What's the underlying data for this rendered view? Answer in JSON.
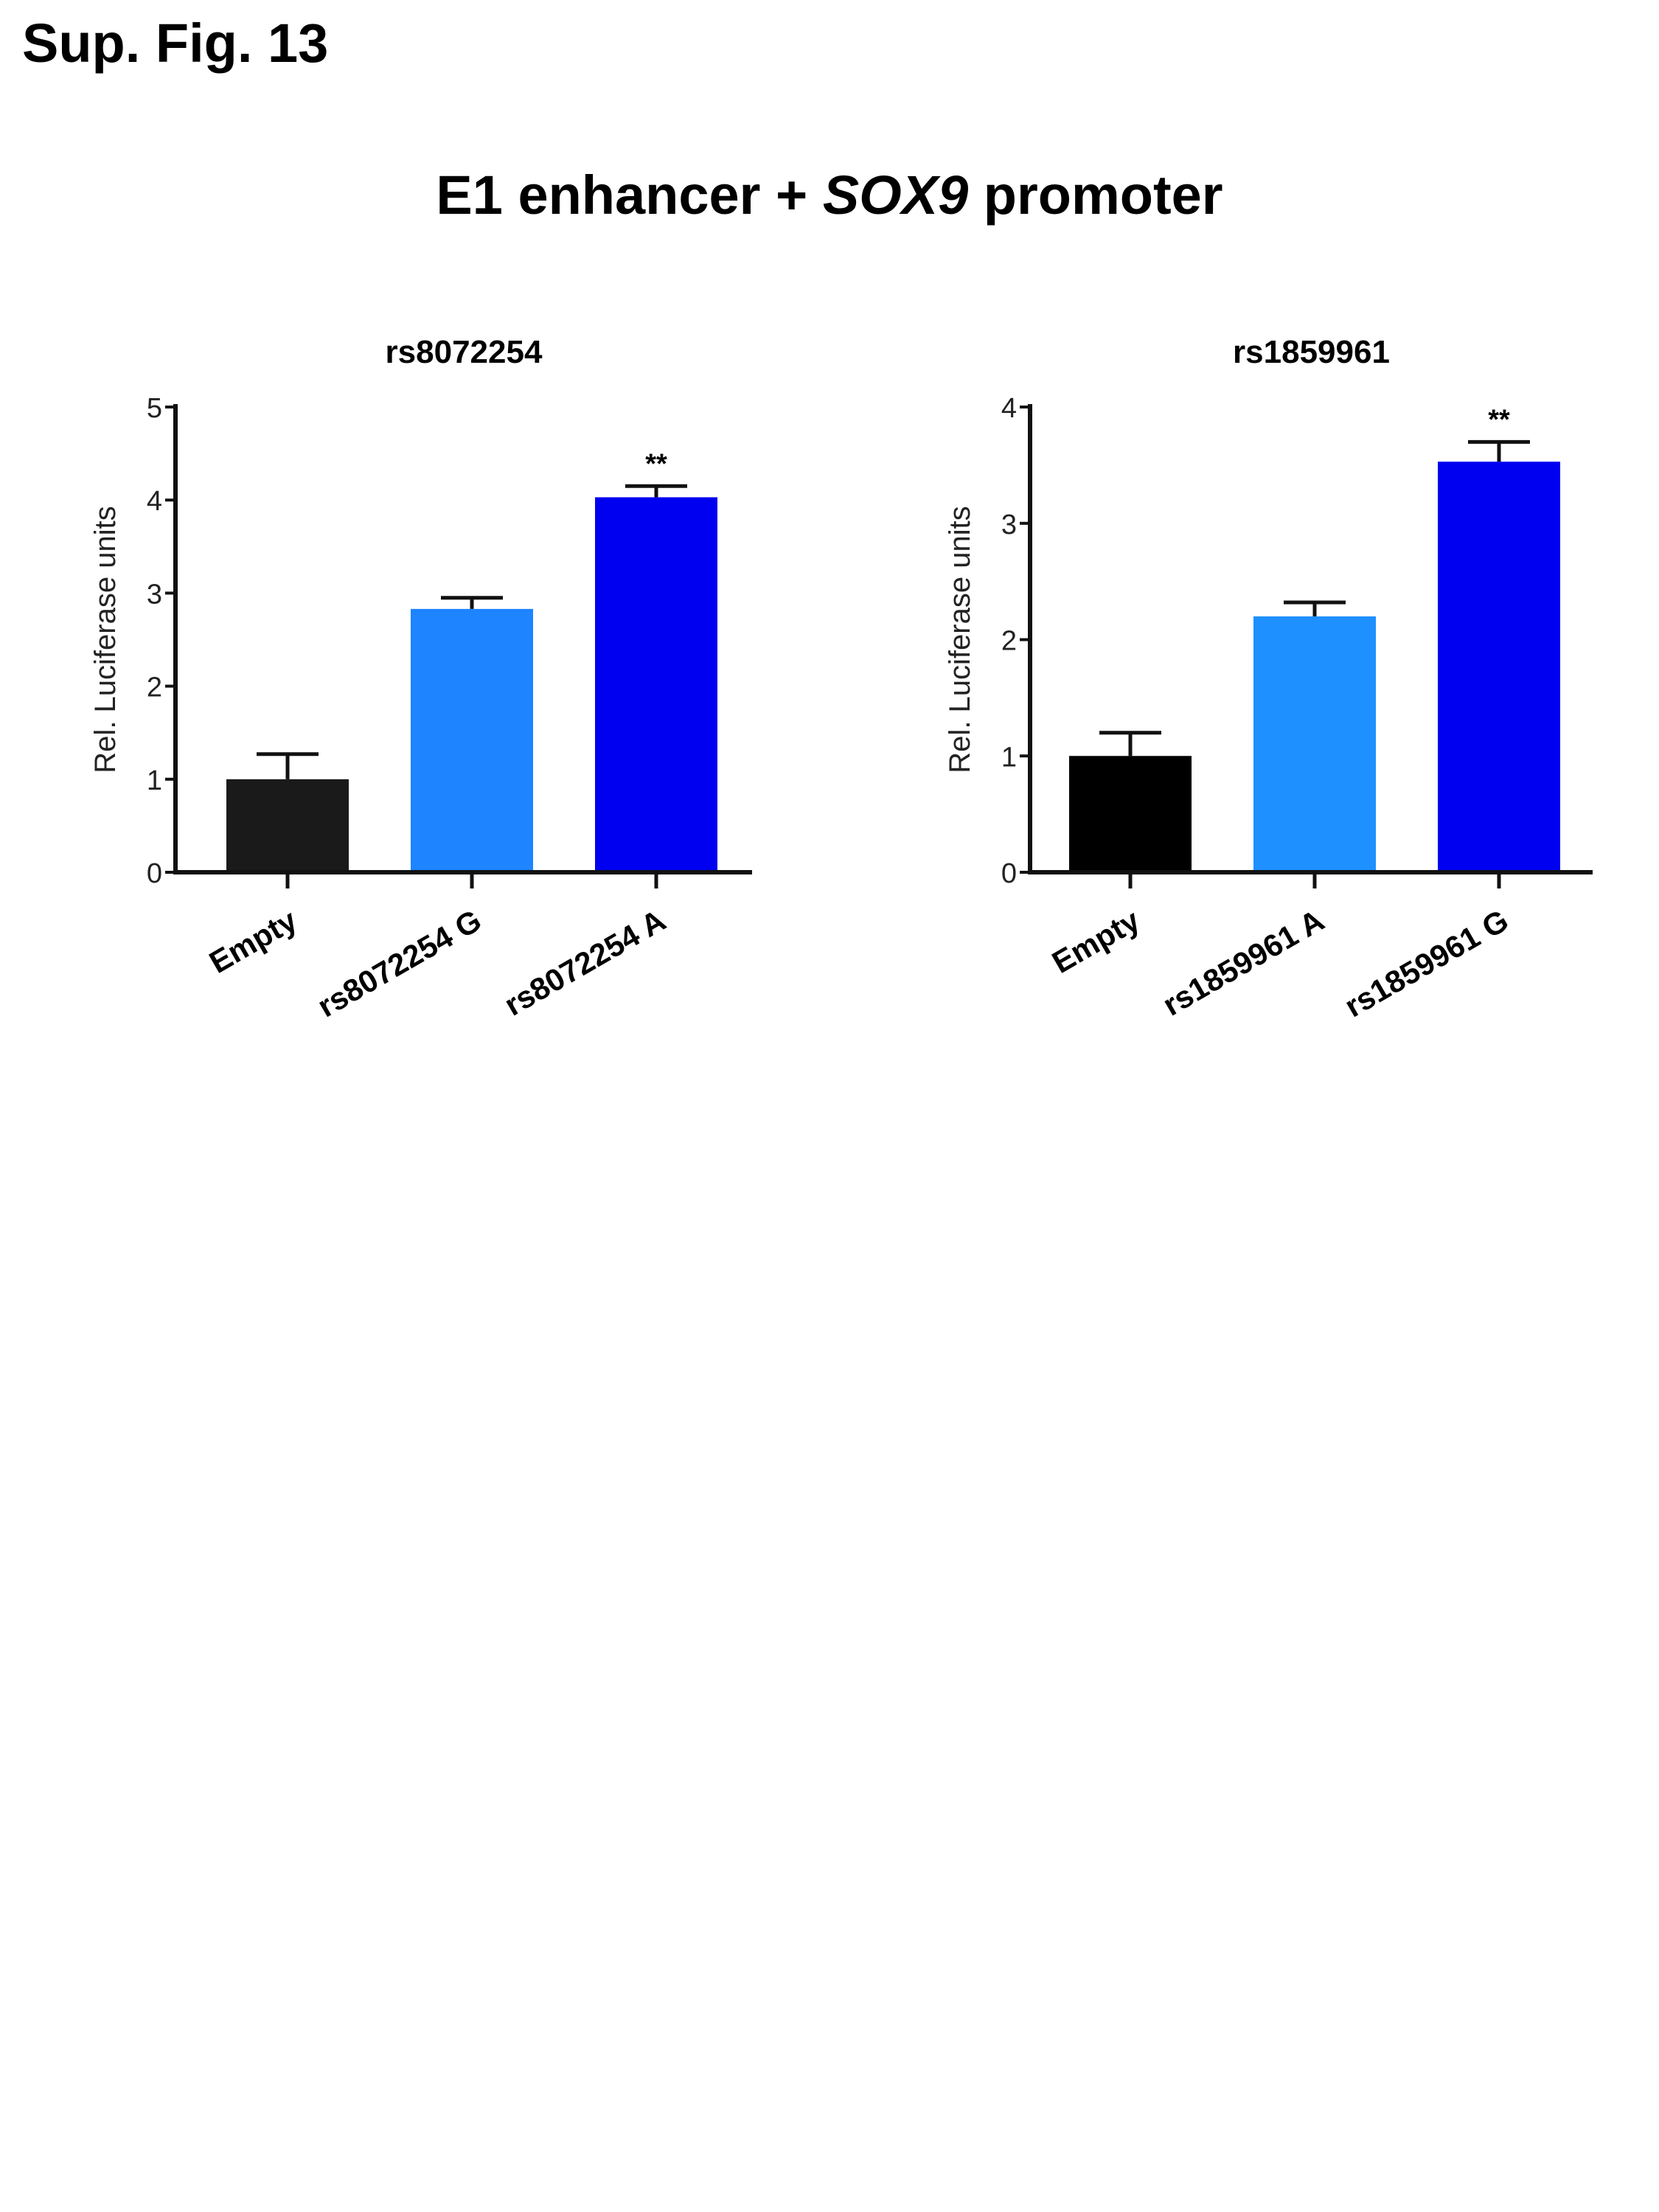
{
  "figure_label": "Sup. Fig. 13",
  "main_title": {
    "before": "E1 enhancer + ",
    "italic": "SOX9",
    "after": " promoter"
  },
  "chart_data": [
    {
      "type": "bar",
      "title": "rs8072254",
      "ylabel": "Rel. Luciferase units",
      "xlabel": "",
      "ylim": [
        0,
        5
      ],
      "yticks": [
        "0",
        "1",
        "2",
        "3",
        "4",
        "5"
      ],
      "categories": [
        "Empty",
        "rs8072254 G",
        "rs8072254 A"
      ],
      "values": [
        1.0,
        2.83,
        4.03
      ],
      "errors": [
        0.27,
        0.12,
        0.12
      ],
      "colors": [
        "#1a1a1a",
        "#1e84ff",
        "#0000f0"
      ],
      "annotations": [
        "",
        "",
        "**"
      ],
      "grid": false
    },
    {
      "type": "bar",
      "title": "rs1859961",
      "ylabel": "Rel. Luciferase units",
      "xlabel": "",
      "ylim": [
        0,
        4
      ],
      "yticks": [
        "0",
        "1",
        "2",
        "3",
        "4"
      ],
      "categories": [
        "Empty",
        "rs1859961 A",
        "rs1859961 G"
      ],
      "values": [
        1.0,
        2.2,
        3.53
      ],
      "errors": [
        0.2,
        0.12,
        0.17
      ],
      "colors": [
        "#000000",
        "#1e90ff",
        "#0000f0"
      ],
      "annotations": [
        "",
        "",
        "**"
      ],
      "grid": false
    }
  ]
}
